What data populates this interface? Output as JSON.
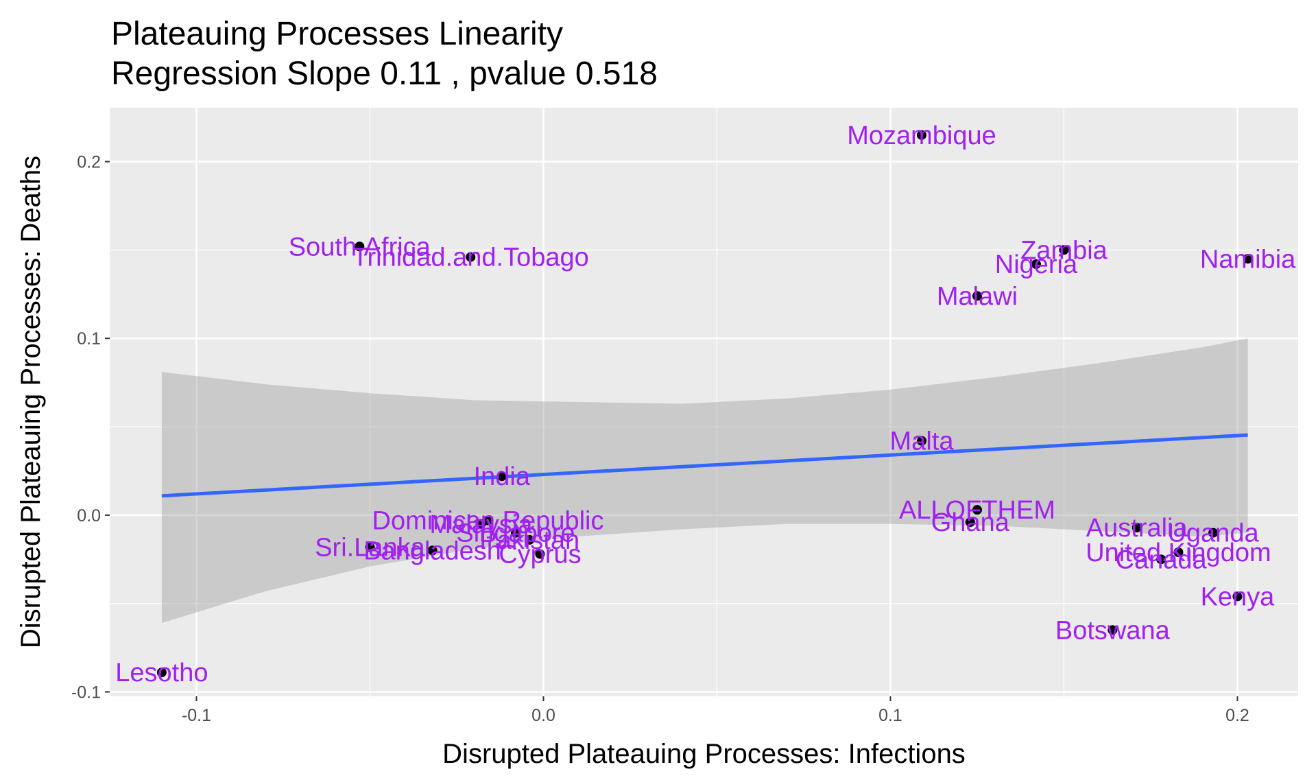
{
  "chart_data": {
    "type": "scatter",
    "title": "Plateauing Processes Linearity",
    "subtitle": "Regression Slope 0.11 , pvalue 0.518",
    "xlabel": "Disrupted Plateauing Processes: Infections",
    "ylabel": "Disrupted Plateauing Processes: Deaths",
    "xlim": [
      -0.125,
      0.2175
    ],
    "ylim": [
      -0.1025,
      0.2305
    ],
    "x_ticks": [
      -0.1,
      0.0,
      0.1,
      0.2
    ],
    "x_tick_labels": [
      "-0.1",
      "0.0",
      "0.1",
      "0.2"
    ],
    "y_ticks": [
      -0.1,
      0.0,
      0.1,
      0.2
    ],
    "y_tick_labels": [
      "-0.1",
      "0.0",
      "0.1",
      "0.2"
    ],
    "grid": true,
    "label_color": "#a020f0",
    "point_color": "#000000",
    "points": [
      {
        "label": "Mozambique",
        "x": 0.109,
        "y": 0.215
      },
      {
        "label": "South.Africa",
        "x": -0.053,
        "y": 0.152
      },
      {
        "label": "Trinidad.and.Tobago",
        "x": -0.021,
        "y": 0.146
      },
      {
        "label": "Zambia",
        "x": 0.15,
        "y": 0.15
      },
      {
        "label": "Nigeria",
        "x": 0.142,
        "y": 0.142
      },
      {
        "label": "Namibia",
        "x": 0.203,
        "y": 0.145
      },
      {
        "label": "Malawi",
        "x": 0.125,
        "y": 0.124
      },
      {
        "label": "Malta",
        "x": 0.109,
        "y": 0.042
      },
      {
        "label": "India",
        "x": -0.012,
        "y": 0.022
      },
      {
        "label": "ALLOFTHEM",
        "x": 0.125,
        "y": 0.003
      },
      {
        "label": "Ghana",
        "x": 0.123,
        "y": -0.004
      },
      {
        "label": "Dominican.Republic",
        "x": -0.016,
        "y": -0.003
      },
      {
        "label": "Malaysia",
        "x": -0.018,
        "y": -0.005
      },
      {
        "label": "Singapore",
        "x": -0.008,
        "y": -0.01
      },
      {
        "label": "Pakistan",
        "x": -0.004,
        "y": -0.014
      },
      {
        "label": "Cyprus",
        "x": -0.001,
        "y": -0.022
      },
      {
        "label": "Sri.Lanka",
        "x": -0.05,
        "y": -0.018
      },
      {
        "label": "Bangladesh",
        "x": -0.032,
        "y": -0.02
      },
      {
        "label": "Australia",
        "x": 0.171,
        "y": -0.007
      },
      {
        "label": "Uganda",
        "x": 0.193,
        "y": -0.01
      },
      {
        "label": "United.Kingdom",
        "x": 0.183,
        "y": -0.021
      },
      {
        "label": "Canada",
        "x": 0.178,
        "y": -0.025
      },
      {
        "label": "Kenya",
        "x": 0.2,
        "y": -0.046
      },
      {
        "label": "Botswana",
        "x": 0.164,
        "y": -0.065
      },
      {
        "label": "Lesotho",
        "x": -0.11,
        "y": -0.089
      }
    ],
    "regression": {
      "slope": 0.11,
      "intercept": 0.023,
      "color": "#3366ff",
      "band_color": "#999999",
      "band": [
        {
          "x": -0.11,
          "lo": -0.061,
          "hi": 0.081
        },
        {
          "x": -0.08,
          "lo": -0.043,
          "hi": 0.074
        },
        {
          "x": -0.05,
          "lo": -0.029,
          "hi": 0.069
        },
        {
          "x": -0.02,
          "lo": -0.019,
          "hi": 0.065
        },
        {
          "x": 0.01,
          "lo": -0.012,
          "hi": 0.064
        },
        {
          "x": 0.04,
          "lo": -0.008,
          "hi": 0.063
        },
        {
          "x": 0.07,
          "lo": -0.005,
          "hi": 0.066
        },
        {
          "x": 0.1,
          "lo": -0.005,
          "hi": 0.071
        },
        {
          "x": 0.13,
          "lo": -0.006,
          "hi": 0.078
        },
        {
          "x": 0.16,
          "lo": -0.009,
          "hi": 0.086
        },
        {
          "x": 0.19,
          "lo": -0.012,
          "hi": 0.095
        },
        {
          "x": 0.203,
          "lo": -0.01,
          "hi": 0.1
        }
      ]
    }
  }
}
